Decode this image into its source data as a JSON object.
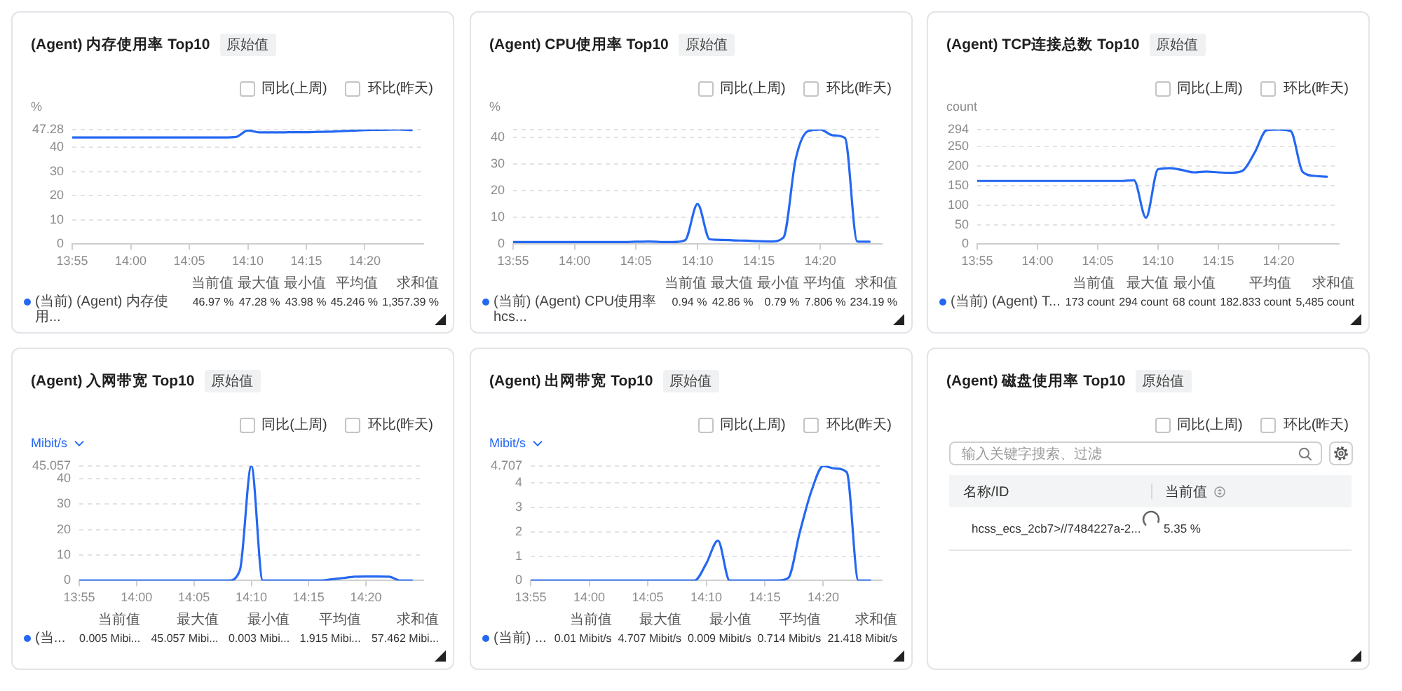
{
  "chart_data": [
    {
      "type": "line",
      "title": "(Agent) 内存使用率 Top10",
      "subtitle": "原始值",
      "ylabel": "%",
      "legend": "bottom",
      "grid": "y",
      "x": [
        13.9167,
        13.9333,
        13.95,
        13.9667,
        13.9833,
        14,
        14.0167,
        14.0333,
        14.05,
        14.0667,
        14.0833,
        14.1,
        14.1167,
        14.1333,
        14.15,
        14.1667,
        14.1833,
        14.2,
        14.2167,
        14.2333,
        14.25,
        14.2667,
        14.2833,
        14.3,
        14.3167,
        14.3333,
        14.35,
        14.3667,
        14.3833,
        14.4
      ],
      "xlim": [
        13.9167,
        14.4167
      ],
      "xticks": [
        {
          "value": 13.9167,
          "label": "13:55"
        },
        {
          "value": 14,
          "label": "14:00"
        },
        {
          "value": 14.0833,
          "label": "14:05"
        },
        {
          "value": 14.1667,
          "label": "14:10"
        },
        {
          "value": 14.25,
          "label": "14:15"
        },
        {
          "value": 14.3333,
          "label": "14:20"
        }
      ],
      "ylim": [
        0,
        47.28
      ],
      "yticks": [
        0,
        10,
        20,
        30,
        40,
        47.28
      ],
      "series": [
        {
          "name": "(当前) (Agent) 内存使用...",
          "color": "#2468f2",
          "values": [
            44,
            44,
            44,
            44,
            44,
            44,
            44,
            44,
            44,
            44,
            44,
            44,
            44,
            44,
            44.2,
            46.9,
            46.1,
            46.1,
            46.1,
            46.2,
            46.2,
            46.3,
            46.4,
            46.6,
            46.8,
            47,
            47.1,
            47.2,
            47.28,
            47
          ]
        }
      ],
      "annotations": [
        "同比(上周)",
        "环比(昨天)",
        "当前值",
        "最大值",
        "最小值",
        "平均值",
        "求和值",
        "46.97 %",
        "47.28 %",
        "43.98 %",
        "45.246 %",
        "1,357.39 %"
      ]
    },
    {
      "type": "line",
      "title": "(Agent) CPU使用率 Top10",
      "subtitle": "原始值",
      "ylabel": "%",
      "legend": "bottom",
      "grid": "y",
      "x": [
        13.9167,
        13.9333,
        13.95,
        13.9667,
        13.9833,
        14,
        14.0167,
        14.0333,
        14.05,
        14.0667,
        14.0833,
        14.1,
        14.1167,
        14.1333,
        14.15,
        14.1667,
        14.1833,
        14.2,
        14.2167,
        14.2333,
        14.25,
        14.2667,
        14.2833,
        14.3,
        14.3167,
        14.3333,
        14.35,
        14.3667,
        14.3833,
        14.4
      ],
      "xlim": [
        13.9167,
        14.4167
      ],
      "xticks": [
        {
          "value": 13.9167,
          "label": "13:55"
        },
        {
          "value": 14,
          "label": "14:00"
        },
        {
          "value": 14.0833,
          "label": "14:05"
        },
        {
          "value": 14.1667,
          "label": "14:10"
        },
        {
          "value": 14.25,
          "label": "14:15"
        },
        {
          "value": 14.3333,
          "label": "14:20"
        }
      ],
      "ylim": [
        0,
        42.86
      ],
      "yticks": [
        0,
        10,
        20,
        30,
        40,
        {
          "value": 42.86,
          "label": null
        }
      ],
      "series": [
        {
          "name": "(当前) (Agent) CPU使用率 hcs...",
          "color": "#2468f2",
          "values": [
            0.8,
            0.8,
            0.8,
            0.8,
            0.8,
            0.8,
            0.8,
            0.8,
            0.8,
            0.8,
            0.9,
            1,
            0.8,
            0.8,
            1.5,
            15,
            1.8,
            1.6,
            1.4,
            1.3,
            1.1,
            1,
            2.5,
            32,
            42.3,
            42.86,
            40.7,
            39.7,
            1,
            0.9
          ]
        }
      ],
      "annotations": [
        "同比(上周)",
        "环比(昨天)",
        "当前值",
        "最大值",
        "最小值",
        "平均值",
        "求和值",
        "0.94 %",
        "42.86 %",
        "0.79 %",
        "7.806 %",
        "234.19 %"
      ]
    },
    {
      "type": "line",
      "title": "(Agent) TCP连接总数 Top10",
      "subtitle": "原始值",
      "ylabel": "count",
      "legend": "bottom",
      "grid": "y",
      "x": [
        13.9167,
        13.9333,
        13.95,
        13.9667,
        13.9833,
        14,
        14.0167,
        14.0333,
        14.05,
        14.0667,
        14.0833,
        14.1,
        14.1167,
        14.1333,
        14.15,
        14.1667,
        14.1833,
        14.2,
        14.2167,
        14.2333,
        14.25,
        14.2667,
        14.2833,
        14.3,
        14.3167,
        14.3333,
        14.35,
        14.3667,
        14.3833,
        14.4
      ],
      "xlim": [
        13.9167,
        14.4167
      ],
      "xticks": [
        {
          "value": 13.9167,
          "label": "13:55"
        },
        {
          "value": 14,
          "label": "14:00"
        },
        {
          "value": 14.0833,
          "label": "14:05"
        },
        {
          "value": 14.1667,
          "label": "14:10"
        },
        {
          "value": 14.25,
          "label": "14:15"
        },
        {
          "value": 14.3333,
          "label": "14:20"
        }
      ],
      "ylim": [
        0,
        294
      ],
      "yticks": [
        0,
        50,
        100,
        150,
        200,
        250,
        294
      ],
      "series": [
        {
          "name": "(当前) (Agent) T...",
          "color": "#2468f2",
          "values": [
            162,
            162,
            162,
            162,
            162,
            162,
            162,
            162,
            162,
            162,
            162,
            162,
            162,
            164,
            68,
            192,
            195,
            190,
            184,
            186,
            184,
            183,
            188,
            234,
            292,
            294,
            290,
            185,
            175,
            173
          ]
        }
      ],
      "annotations": [
        "同比(上周)",
        "环比(昨天)",
        "当前值",
        "最大值",
        "最小值",
        "平均值",
        "求和值",
        "173 count",
        "294 count",
        "68 count",
        "182.833 count",
        "5,485 count"
      ]
    },
    {
      "type": "line",
      "title": "(Agent) 入网带宽 Top10",
      "subtitle": "原始值",
      "ylabel": "Mibit/s",
      "legend": "bottom",
      "grid": "y",
      "x": [
        13.9167,
        13.9333,
        13.95,
        13.9667,
        13.9833,
        14,
        14.0167,
        14.0333,
        14.05,
        14.0667,
        14.0833,
        14.1,
        14.1167,
        14.1333,
        14.15,
        14.1667,
        14.1833,
        14.2,
        14.2167,
        14.2333,
        14.25,
        14.2667,
        14.2833,
        14.3,
        14.3167,
        14.3333,
        14.35,
        14.3667,
        14.3833,
        14.4
      ],
      "xlim": [
        13.9167,
        14.4167
      ],
      "xticks": [
        {
          "value": 13.9167,
          "label": "13:55"
        },
        {
          "value": 14,
          "label": "14:00"
        },
        {
          "value": 14.0833,
          "label": "14:05"
        },
        {
          "value": 14.1667,
          "label": "14:10"
        },
        {
          "value": 14.25,
          "label": "14:15"
        },
        {
          "value": 14.3333,
          "label": "14:20"
        }
      ],
      "ylim": [
        0,
        45.057
      ],
      "yticks": [
        0,
        10,
        20,
        30,
        40,
        45.057
      ],
      "series": [
        {
          "name": "(当...",
          "color": "#2468f2",
          "values": [
            0,
            0,
            0,
            0,
            0,
            0,
            0,
            0,
            0,
            0,
            0,
            0,
            0,
            0,
            4,
            45.057,
            0,
            0,
            0,
            0,
            0,
            0,
            0.5,
            1,
            1.5,
            1.6,
            1.6,
            1.5,
            0,
            0
          ]
        }
      ],
      "annotations": [
        "同比(上周)",
        "环比(昨天)",
        "当前值",
        "最大值",
        "最小值",
        "平均值",
        "求和值",
        "0.005 Mibi...",
        "45.057 Mibi...",
        "0.003 Mibi...",
        "1.915 Mibi...",
        "57.462 Mibi..."
      ]
    },
    {
      "type": "line",
      "title": "(Agent) 出网带宽 Top10",
      "subtitle": "原始值",
      "ylabel": "Mibit/s",
      "legend": "bottom",
      "grid": "y",
      "x": [
        13.9167,
        13.9333,
        13.95,
        13.9667,
        13.9833,
        14,
        14.0167,
        14.0333,
        14.05,
        14.0667,
        14.0833,
        14.1,
        14.1167,
        14.1333,
        14.15,
        14.1667,
        14.1833,
        14.2,
        14.2167,
        14.2333,
        14.25,
        14.2667,
        14.2833,
        14.3,
        14.3167,
        14.3333,
        14.35,
        14.3667,
        14.3833,
        14.4
      ],
      "xlim": [
        13.9167,
        14.4167
      ],
      "xticks": [
        {
          "value": 13.9167,
          "label": "13:55"
        },
        {
          "value": 14,
          "label": "14:00"
        },
        {
          "value": 14.0833,
          "label": "14:05"
        },
        {
          "value": 14.1667,
          "label": "14:10"
        },
        {
          "value": 14.25,
          "label": "14:15"
        },
        {
          "value": 14.3333,
          "label": "14:20"
        }
      ],
      "ylim": [
        0,
        4.707
      ],
      "yticks": [
        0,
        1,
        2,
        3,
        4,
        4.707
      ],
      "series": [
        {
          "name": "(当前) ...",
          "color": "#2468f2",
          "values": [
            0,
            0,
            0,
            0,
            0,
            0,
            0,
            0,
            0,
            0,
            0,
            0,
            0,
            0,
            0,
            0.7,
            1.64,
            0,
            0,
            0,
            0,
            0,
            0.1,
            2,
            3.7,
            4.707,
            4.6,
            4.45,
            0,
            0
          ]
        }
      ],
      "annotations": [
        "同比(上周)",
        "环比(昨天)",
        "当前值",
        "最大值",
        "最小值",
        "平均值",
        "求和值",
        "0.01 Mibit/s",
        "4.707 Mibit/s",
        "0.009 Mibit/s",
        "0.714 Mibit/s",
        "21.418 Mibit/s"
      ]
    },
    {
      "type": "other",
      "title": "(Agent) 磁盘使用率 Top10",
      "subtitle": "原始值",
      "annotations": [
        "同比(上周)",
        "环比(昨天)",
        "输入关键字搜索、过滤",
        "名称/ID",
        "当前值",
        "hcss_ecs_2cb7>//7484227a-2...",
        "5.35 %"
      ]
    }
  ]
}
